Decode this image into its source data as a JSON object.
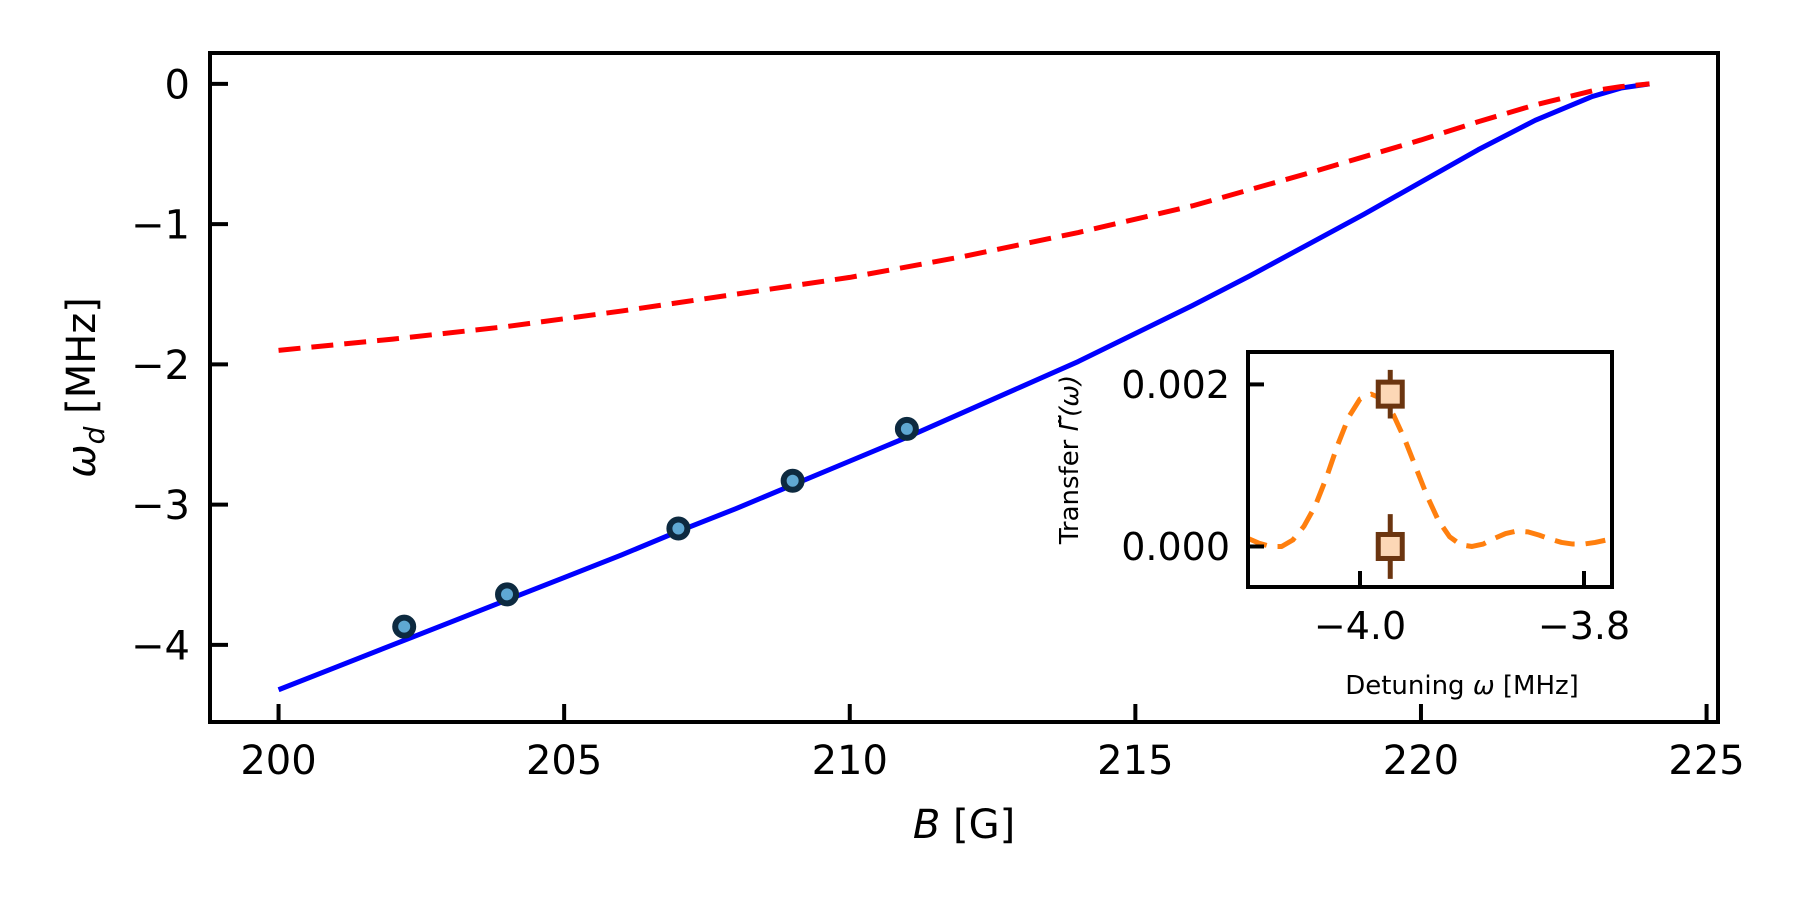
{
  "chart_data": [
    {
      "type": "line",
      "xlabel_parts": [
        "B",
        " [G]"
      ],
      "ylabel_parts": [
        "ω",
        "d",
        " [MHz]"
      ],
      "xlim": [
        198.8,
        225.2
      ],
      "ylim": [
        -4.55,
        0.22
      ],
      "xticks": [
        200,
        205,
        210,
        215,
        220,
        225
      ],
      "xtick_labels": [
        "200",
        "205",
        "210",
        "215",
        "220",
        "225"
      ],
      "yticks": [
        0,
        -1,
        -2,
        -3,
        -4
      ],
      "ytick_labels": [
        "0",
        "−1",
        "−2",
        "−3",
        "−4"
      ],
      "grid": false,
      "series": [
        {
          "style": "solid",
          "color": "#0000ff",
          "x": [
            200,
            201,
            202,
            203,
            204,
            205,
            206,
            207,
            208,
            209,
            210,
            211,
            212,
            213,
            214,
            215,
            216,
            217,
            218,
            219,
            220,
            221,
            222,
            223,
            223.5,
            224
          ],
          "y": [
            -4.32,
            -4.16,
            -4.0,
            -3.84,
            -3.68,
            -3.52,
            -3.36,
            -3.19,
            -3.03,
            -2.86,
            -2.69,
            -2.52,
            -2.34,
            -2.16,
            -1.98,
            -1.78,
            -1.58,
            -1.37,
            -1.15,
            -0.93,
            -0.7,
            -0.47,
            -0.26,
            -0.09,
            -0.03,
            0.0
          ]
        },
        {
          "style": "dashed",
          "color": "#ff0000",
          "x": [
            200,
            202,
            204,
            206,
            208,
            210,
            212,
            214,
            216,
            218,
            219,
            220,
            221,
            222,
            223,
            223.5,
            224
          ],
          "y": [
            -1.9,
            -1.82,
            -1.73,
            -1.62,
            -1.5,
            -1.38,
            -1.23,
            -1.06,
            -0.87,
            -0.64,
            -0.52,
            -0.4,
            -0.27,
            -0.15,
            -0.05,
            -0.02,
            0.0
          ]
        },
        {
          "style": "markers",
          "color": "#5fa8d3",
          "edge_color": "#0d2a40",
          "x": [
            202.2,
            204.0,
            207.0,
            209.0,
            211.0
          ],
          "y": [
            -3.87,
            -3.64,
            -3.17,
            -2.83,
            -2.46
          ]
        }
      ]
    },
    {
      "type": "line",
      "inset": true,
      "xlabel_parts": [
        "Detuning ",
        "ω",
        " [MHz]"
      ],
      "ylabel_parts": [
        "Transfer ",
        "Γ̃(ω)"
      ],
      "xlim": [
        -4.1,
        -3.775
      ],
      "ylim": [
        -0.0005,
        0.0024
      ],
      "xticks": [
        -4.0,
        -3.8
      ],
      "xtick_labels": [
        "−4.0",
        "−3.8"
      ],
      "yticks": [
        0.002,
        0.0
      ],
      "ytick_labels": [
        "0.002",
        "0.000"
      ],
      "series": [
        {
          "style": "dashed",
          "color": "#ff7f0e",
          "x": [
            -4.1,
            -4.09,
            -4.08,
            -4.07,
            -4.06,
            -4.05,
            -4.04,
            -4.03,
            -4.02,
            -4.01,
            -4.0,
            -3.99,
            -3.98,
            -3.97,
            -3.96,
            -3.95,
            -3.94,
            -3.93,
            -3.92,
            -3.91,
            -3.9,
            -3.89,
            -3.88,
            -3.87,
            -3.86,
            -3.85,
            -3.84,
            -3.83,
            -3.82,
            -3.81,
            -3.8,
            -3.79,
            -3.78,
            -3.775
          ],
          "y": [
            0.0001,
            4e-05,
            0.0,
            0.0,
            8e-05,
            0.00025,
            0.0005,
            0.00085,
            0.00125,
            0.0016,
            0.00182,
            0.00188,
            0.00182,
            0.00162,
            0.00132,
            0.00097,
            0.00062,
            0.00032,
            0.00012,
            2e-05,
            0.0,
            3e-05,
            0.0001,
            0.00016,
            0.00019,
            0.00018,
            0.00014,
            9e-05,
            5e-05,
            3e-05,
            3e-05,
            5e-05,
            8e-05,
            0.0001
          ]
        },
        {
          "style": "errorbar-markers",
          "color": "#fcd7b6",
          "edge_color": "#6b3510",
          "x": [
            -3.973,
            -3.973
          ],
          "y": [
            0.00188,
            0.0
          ],
          "yerr": [
            0.0003,
            0.0004
          ]
        }
      ]
    }
  ]
}
